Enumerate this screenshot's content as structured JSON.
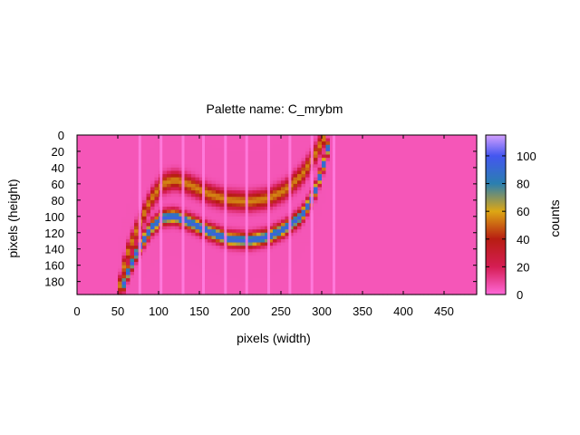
{
  "chart_data": {
    "type": "heatmap",
    "title": "Palette name: C_mrybm",
    "xlabel": "pixels (width)",
    "ylabel": "pixels (height)",
    "colorbar_label": "counts",
    "xlim": [
      0,
      490
    ],
    "ylim": [
      196,
      0
    ],
    "x_ticks": [
      "0",
      "50",
      "100",
      "150",
      "200",
      "250",
      "300",
      "350",
      "400",
      "450"
    ],
    "y_ticks": [
      "0",
      "20",
      "40",
      "60",
      "80",
      "100",
      "120",
      "140",
      "160",
      "180"
    ],
    "colorbar_range": [
      0,
      115
    ],
    "colorbar_ticks": [
      "0",
      "20",
      "40",
      "60",
      "80",
      "100"
    ],
    "palette": [
      "#ff69d9",
      "#d51d53",
      "#b71d12",
      "#dda714",
      "#2a7fb0",
      "#4456f0",
      "#d4a0ff"
    ],
    "palette_stops": [
      0,
      20,
      40,
      60,
      80,
      100,
      115
    ],
    "background_level": 5,
    "inner_ridge": {
      "x": [
        53,
        60,
        75,
        90,
        105,
        120,
        140,
        160,
        185,
        210,
        235,
        255,
        275,
        290,
        300,
        308
      ],
      "y": [
        196,
        175,
        140,
        115,
        102,
        100,
        108,
        118,
        128,
        130,
        125,
        115,
        100,
        75,
        45,
        15
      ],
      "peak_counts": 90
    },
    "outer_ridge": {
      "x": [
        50,
        60,
        75,
        90,
        105,
        120,
        140,
        160,
        185,
        210,
        235,
        255,
        275,
        290,
        300,
        305
      ],
      "y": [
        196,
        150,
        112,
        80,
        60,
        55,
        62,
        72,
        80,
        82,
        78,
        68,
        50,
        28,
        8,
        0
      ],
      "peak_counts": 50
    },
    "pink_columns_x": [
      77,
      103,
      130,
      155,
      182,
      208,
      235,
      261,
      288,
      315
    ]
  }
}
